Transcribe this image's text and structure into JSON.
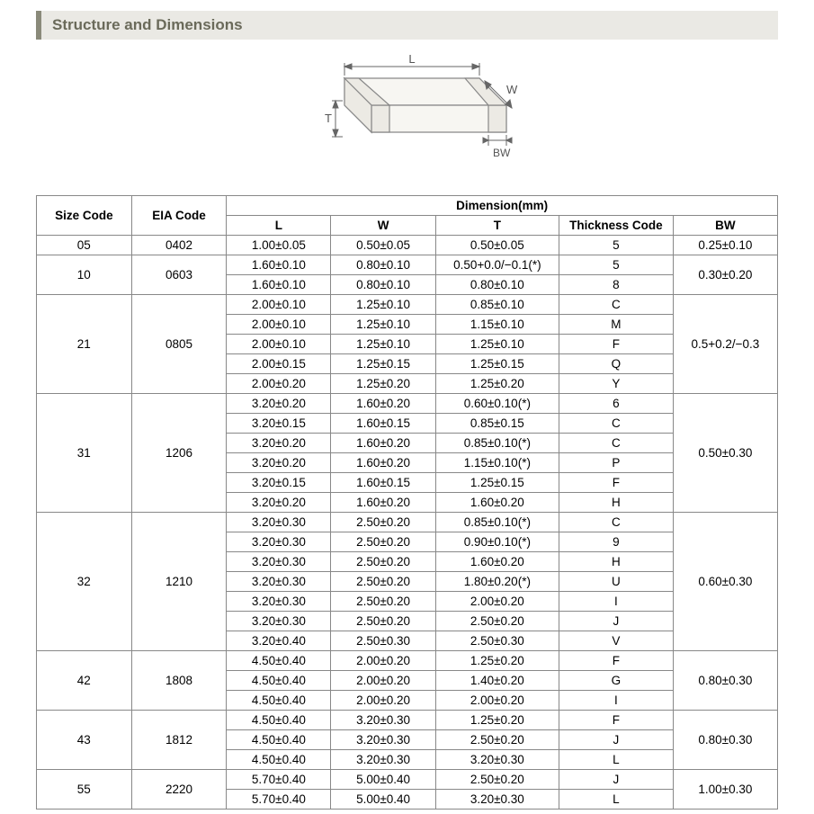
{
  "title": "Structure and Dimensions",
  "diagram": {
    "labels": {
      "L": "L",
      "W": "W",
      "T": "T",
      "BW": "BW"
    },
    "stroke": "#888888",
    "fill": "#f5f5f2"
  },
  "table": {
    "header": {
      "size_code": "Size Code",
      "eia_code": "EIA Code",
      "dimension": "Dimension(mm)",
      "L": "L",
      "W": "W",
      "T": "T",
      "thickness_code": "Thickness Code",
      "BW": "BW"
    },
    "groups": [
      {
        "size": "05",
        "eia": "0402",
        "bw": "0.25±0.10",
        "rows": [
          {
            "L": "1.00±0.05",
            "W": "0.50±0.05",
            "T": "0.50±0.05",
            "TC": "5"
          }
        ]
      },
      {
        "size": "10",
        "eia": "0603",
        "bw": "0.30±0.20",
        "rows": [
          {
            "L": "1.60±0.10",
            "W": "0.80±0.10",
            "T": "0.50+0.0/−0.1(*)",
            "TC": "5"
          },
          {
            "L": "1.60±0.10",
            "W": "0.80±0.10",
            "T": "0.80±0.10",
            "TC": "8"
          }
        ]
      },
      {
        "size": "21",
        "eia": "0805",
        "bw": "0.5+0.2/−0.3",
        "rows": [
          {
            "L": "2.00±0.10",
            "W": "1.25±0.10",
            "T": "0.85±0.10",
            "TC": "C"
          },
          {
            "L": "2.00±0.10",
            "W": "1.25±0.10",
            "T": "1.15±0.10",
            "TC": "M"
          },
          {
            "L": "2.00±0.10",
            "W": "1.25±0.10",
            "T": "1.25±0.10",
            "TC": "F"
          },
          {
            "L": "2.00±0.15",
            "W": "1.25±0.15",
            "T": "1.25±0.15",
            "TC": "Q"
          },
          {
            "L": "2.00±0.20",
            "W": "1.25±0.20",
            "T": "1.25±0.20",
            "TC": "Y"
          }
        ]
      },
      {
        "size": "31",
        "eia": "1206",
        "bw": "0.50±0.30",
        "rows": [
          {
            "L": "3.20±0.20",
            "W": "1.60±0.20",
            "T": "0.60±0.10(*)",
            "TC": "6"
          },
          {
            "L": "3.20±0.15",
            "W": "1.60±0.15",
            "T": "0.85±0.15",
            "TC": "C"
          },
          {
            "L": "3.20±0.20",
            "W": "1.60±0.20",
            "T": "0.85±0.10(*)",
            "TC": "C"
          },
          {
            "L": "3.20±0.20",
            "W": "1.60±0.20",
            "T": "1.15±0.10(*)",
            "TC": "P"
          },
          {
            "L": "3.20±0.15",
            "W": "1.60±0.15",
            "T": "1.25±0.15",
            "TC": "F"
          },
          {
            "L": "3.20±0.20",
            "W": "1.60±0.20",
            "T": "1.60±0.20",
            "TC": "H"
          }
        ]
      },
      {
        "size": "32",
        "eia": "1210",
        "bw": "0.60±0.30",
        "rows": [
          {
            "L": "3.20±0.30",
            "W": "2.50±0.20",
            "T": "0.85±0.10(*)",
            "TC": "C"
          },
          {
            "L": "3.20±0.30",
            "W": "2.50±0.20",
            "T": "0.90±0.10(*)",
            "TC": "9"
          },
          {
            "L": "3.20±0.30",
            "W": "2.50±0.20",
            "T": "1.60±0.20",
            "TC": "H"
          },
          {
            "L": "3.20±0.30",
            "W": "2.50±0.20",
            "T": "1.80±0.20(*)",
            "TC": "U"
          },
          {
            "L": "3.20±0.30",
            "W": "2.50±0.20",
            "T": "2.00±0.20",
            "TC": "I"
          },
          {
            "L": "3.20±0.30",
            "W": "2.50±0.20",
            "T": "2.50±0.20",
            "TC": "J"
          },
          {
            "L": "3.20±0.40",
            "W": "2.50±0.30",
            "T": "2.50±0.30",
            "TC": "V"
          }
        ]
      },
      {
        "size": "42",
        "eia": "1808",
        "bw": "0.80±0.30",
        "rows": [
          {
            "L": "4.50±0.40",
            "W": "2.00±0.20",
            "T": "1.25±0.20",
            "TC": "F"
          },
          {
            "L": "4.50±0.40",
            "W": "2.00±0.20",
            "T": "1.40±0.20",
            "TC": "G"
          },
          {
            "L": "4.50±0.40",
            "W": "2.00±0.20",
            "T": "2.00±0.20",
            "TC": "I"
          }
        ]
      },
      {
        "size": "43",
        "eia": "1812",
        "bw": "0.80±0.30",
        "rows": [
          {
            "L": "4.50±0.40",
            "W": "3.20±0.30",
            "T": "1.25±0.20",
            "TC": "F"
          },
          {
            "L": "4.50±0.40",
            "W": "3.20±0.30",
            "T": "2.50±0.20",
            "TC": "J"
          },
          {
            "L": "4.50±0.40",
            "W": "3.20±0.30",
            "T": "3.20±0.30",
            "TC": "L"
          }
        ]
      },
      {
        "size": "55",
        "eia": "2220",
        "bw": "1.00±0.30",
        "rows": [
          {
            "L": "5.70±0.40",
            "W": "5.00±0.40",
            "T": "2.50±0.20",
            "TC": "J"
          },
          {
            "L": "5.70±0.40",
            "W": "5.00±0.40",
            "T": "3.20±0.30",
            "TC": "L"
          }
        ]
      }
    ]
  },
  "styling": {
    "header_bg": "#eae9e4",
    "header_border": "#8a8a7a",
    "table_border": "#888888",
    "font_size_header": 17,
    "font_size_table": 13.5
  }
}
